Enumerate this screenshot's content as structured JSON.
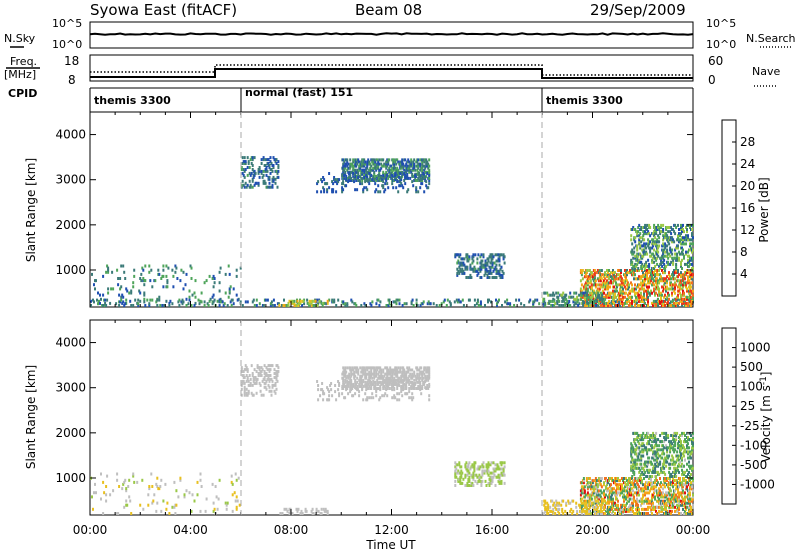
{
  "header": {
    "title": "Syowa East (fitACF)",
    "beam": "Beam 08",
    "date": "29/Sep/2009"
  },
  "top_panels": {
    "nsky_label": "N.Sky",
    "nsky_ticks": [
      "10^5",
      "10^0"
    ],
    "nsearch_label": "N.Search",
    "nsearch_ticks": [
      "10^5",
      "10^0"
    ],
    "freq_label_line1": "Freq.",
    "freq_label_line2": "[MHz]",
    "freq_ticks": [
      "18",
      "8"
    ],
    "nave_label": "Nave",
    "nave_ticks": [
      "60",
      "0"
    ],
    "cpid_label": "CPID",
    "cpid_segments": [
      {
        "label": "themis 3300",
        "start_hour": 0,
        "end_hour": 6
      },
      {
        "label": "normal (fast) 151",
        "start_hour": 6,
        "end_hour": 18
      },
      {
        "label": "themis 3300",
        "start_hour": 18,
        "end_hour": 24
      }
    ]
  },
  "chart_data": [
    {
      "type": "heatmap",
      "title": "",
      "xlabel": "Time UT",
      "ylabel": "Slant Range [km]",
      "xlim": [
        0,
        24
      ],
      "ylim": [
        180,
        4500
      ],
      "yticks": [
        1000,
        2000,
        3000,
        4000
      ],
      "xtick_labels": [
        "00:00",
        "04:00",
        "08:00",
        "12:00",
        "16:00",
        "20:00",
        "00:00"
      ],
      "colorbar": {
        "label": "Power [dB]",
        "range": [
          0,
          32
        ],
        "tick_values": [
          4,
          8,
          12,
          16,
          20,
          24,
          28
        ],
        "tick_labels": [
          "4",
          "8",
          "12",
          "16",
          "20",
          "24",
          "28"
        ],
        "colors": [
          "#1a1aff",
          "#1f4fb0",
          "#3b7a78",
          "#4ea45a",
          "#9ac847",
          "#e8c020",
          "#f4a418",
          "#f07020",
          "#ea3a1a",
          "#e01010"
        ]
      },
      "scatter_regions": [
        {
          "t0": 0.0,
          "t1": 6.0,
          "r0": 180,
          "r1": 1100,
          "v0": 4,
          "v1": 12,
          "density": 0.05
        },
        {
          "t0": 0.0,
          "t1": 24.0,
          "r0": 180,
          "r1": 340,
          "v0": 4,
          "v1": 12,
          "density": 0.12
        },
        {
          "t0": 6.0,
          "t1": 7.5,
          "r0": 2800,
          "r1": 3500,
          "v0": 4,
          "v1": 10,
          "density": 0.22
        },
        {
          "t0": 10.0,
          "t1": 13.5,
          "r0": 2950,
          "r1": 3450,
          "v0": 4,
          "v1": 12,
          "density": 0.5
        },
        {
          "t0": 9.0,
          "t1": 13.5,
          "r0": 2700,
          "r1": 3150,
          "v0": 4,
          "v1": 8,
          "density": 0.12
        },
        {
          "t0": 14.5,
          "t1": 16.5,
          "r0": 800,
          "r1": 1350,
          "v0": 4,
          "v1": 10,
          "density": 0.3
        },
        {
          "t0": 7.5,
          "t1": 9.5,
          "r0": 180,
          "r1": 320,
          "v0": 10,
          "v1": 20,
          "density": 0.3
        },
        {
          "t0": 19.5,
          "t1": 24.0,
          "r0": 180,
          "r1": 1000,
          "v0": 8,
          "v1": 30,
          "density": 0.42
        },
        {
          "t0": 21.5,
          "t1": 24.0,
          "r0": 1000,
          "r1": 2000,
          "v0": 4,
          "v1": 16,
          "density": 0.3
        },
        {
          "t0": 18.0,
          "t1": 20.5,
          "r0": 180,
          "r1": 500,
          "v0": 6,
          "v1": 14,
          "density": 0.3
        }
      ]
    },
    {
      "type": "heatmap",
      "title": "",
      "xlabel": "Time UT",
      "ylabel": "Slant Range [km]",
      "xlim": [
        0,
        24
      ],
      "ylim": [
        180,
        4500
      ],
      "yticks": [
        1000,
        2000,
        3000,
        4000
      ],
      "xtick_labels": [
        "00:00",
        "04:00",
        "08:00",
        "12:00",
        "16:00",
        "20:00",
        "00:00"
      ],
      "colorbar": {
        "label": "Velocity [m s-1]",
        "range": [
          -1200,
          1200
        ],
        "tick_labels": [
          "1000",
          "500",
          "100",
          "25",
          "-25",
          "-100",
          "-500",
          "-1000"
        ],
        "colors": [
          "#e01010",
          "#f07020",
          "#f4a418",
          "#e8c020",
          "#bfbfbf",
          "#9ac847",
          "#4ea45a",
          "#3b7a78",
          "#1f4fb0"
        ]
      },
      "scatter_regions": [
        {
          "t0": 0.0,
          "t1": 6.0,
          "r0": 180,
          "r1": 1100,
          "v0": -200,
          "v1": 200,
          "density": 0.04
        },
        {
          "t0": 6.0,
          "t1": 7.5,
          "r0": 2800,
          "r1": 3500,
          "v0": -20,
          "v1": 20,
          "density": 0.22
        },
        {
          "t0": 10.0,
          "t1": 13.5,
          "r0": 2950,
          "r1": 3450,
          "v0": -20,
          "v1": 20,
          "density": 0.5
        },
        {
          "t0": 9.0,
          "t1": 13.5,
          "r0": 2700,
          "r1": 3150,
          "v0": -20,
          "v1": 20,
          "density": 0.12
        },
        {
          "t0": 14.5,
          "t1": 16.5,
          "r0": 800,
          "r1": 1350,
          "v0": 60,
          "v1": 300,
          "density": 0.3
        },
        {
          "t0": 7.5,
          "t1": 9.5,
          "r0": 180,
          "r1": 320,
          "v0": -20,
          "v1": 20,
          "density": 0.3
        },
        {
          "t0": 19.5,
          "t1": 24.0,
          "r0": 180,
          "r1": 1000,
          "v0": -1000,
          "v1": 800,
          "density": 0.42
        },
        {
          "t0": 21.5,
          "t1": 24.0,
          "r0": 1000,
          "r1": 2000,
          "v0": 100,
          "v1": 900,
          "density": 0.3
        },
        {
          "t0": 18.0,
          "t1": 20.5,
          "r0": 180,
          "r1": 500,
          "v0": -400,
          "v1": -50,
          "density": 0.3
        }
      ]
    }
  ]
}
